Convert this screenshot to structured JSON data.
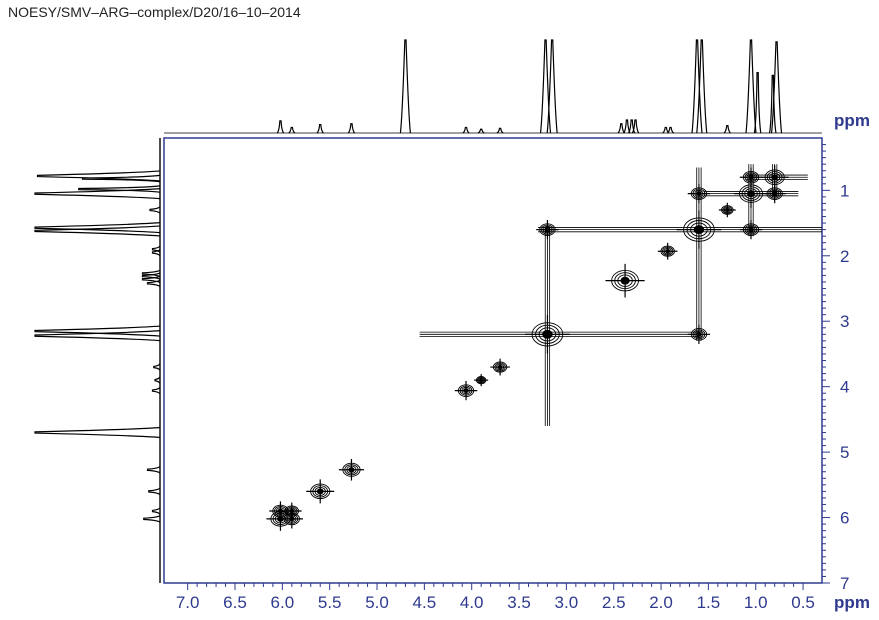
{
  "header": {
    "title": "NOESY/SMV–ARG–complex/D20/16–10–2014"
  },
  "colors": {
    "axis": "#2f3a8f",
    "contour": "#000000",
    "projection": "#000000"
  },
  "chart_data": {
    "type": "heatmap",
    "title": "NOESY/SMV–ARG–complex/D20/16–10–2014",
    "xlabel": "ppm",
    "ylabel": "ppm",
    "xlim": [
      7.25,
      0.3
    ],
    "ylim": [
      0.2,
      7.0
    ],
    "x_ticks": [
      "7.0",
      "6.5",
      "6.0",
      "5.5",
      "5.0",
      "4.5",
      "4.0",
      "3.5",
      "3.0",
      "2.5",
      "2.0",
      "1.5",
      "1.0",
      "0.5"
    ],
    "y_ticks": [
      "1",
      "2",
      "3",
      "4",
      "5",
      "6",
      "7"
    ],
    "projection_peaks": [
      {
        "ppm": 6.02,
        "height": 0.13
      },
      {
        "ppm": 5.9,
        "height": 0.06
      },
      {
        "ppm": 5.6,
        "height": 0.09
      },
      {
        "ppm": 5.27,
        "height": 0.1
      },
      {
        "ppm": 4.7,
        "height": 1.0
      },
      {
        "ppm": 4.06,
        "height": 0.06
      },
      {
        "ppm": 3.9,
        "height": 0.04
      },
      {
        "ppm": 3.7,
        "height": 0.05
      },
      {
        "ppm": 3.22,
        "height": 1.0
      },
      {
        "ppm": 3.15,
        "height": 1.0
      },
      {
        "ppm": 2.42,
        "height": 0.1
      },
      {
        "ppm": 2.36,
        "height": 0.14
      },
      {
        "ppm": 2.31,
        "height": 0.14
      },
      {
        "ppm": 2.27,
        "height": 0.14
      },
      {
        "ppm": 1.95,
        "height": 0.06
      },
      {
        "ppm": 1.9,
        "height": 0.06
      },
      {
        "ppm": 1.62,
        "height": 1.0
      },
      {
        "ppm": 1.57,
        "height": 1.0
      },
      {
        "ppm": 1.3,
        "height": 0.08
      },
      {
        "ppm": 1.05,
        "height": 1.0
      },
      {
        "ppm": 0.98,
        "height": 0.65
      },
      {
        "ppm": 0.82,
        "height": 0.62
      },
      {
        "ppm": 0.78,
        "height": 0.98
      }
    ],
    "diagonal_peaks": [
      {
        "ppm": 6.02,
        "size": 1.0
      },
      {
        "ppm": 5.9,
        "size": 0.7
      },
      {
        "ppm": 5.6,
        "size": 1.0
      },
      {
        "ppm": 5.27,
        "size": 0.9
      },
      {
        "ppm": 4.06,
        "size": 0.8
      },
      {
        "ppm": 3.9,
        "size": 0.5
      },
      {
        "ppm": 3.7,
        "size": 0.7
      },
      {
        "ppm": 3.2,
        "size": 1.6
      },
      {
        "ppm": 2.38,
        "size": 1.4
      },
      {
        "ppm": 1.93,
        "size": 0.7
      },
      {
        "ppm": 1.6,
        "size": 1.6
      },
      {
        "ppm": 1.3,
        "size": 0.6
      },
      {
        "ppm": 1.05,
        "size": 1.2
      },
      {
        "ppm": 0.8,
        "size": 1.0
      }
    ],
    "cross_peaks": [
      {
        "x": 3.2,
        "y": 1.6
      },
      {
        "x": 1.6,
        "y": 3.2
      },
      {
        "x": 1.6,
        "y": 1.05
      },
      {
        "x": 1.05,
        "y": 1.6
      },
      {
        "x": 1.05,
        "y": 0.8
      },
      {
        "x": 0.8,
        "y": 1.05
      },
      {
        "x": 5.9,
        "y": 6.02
      },
      {
        "x": 6.02,
        "y": 5.9
      }
    ]
  }
}
